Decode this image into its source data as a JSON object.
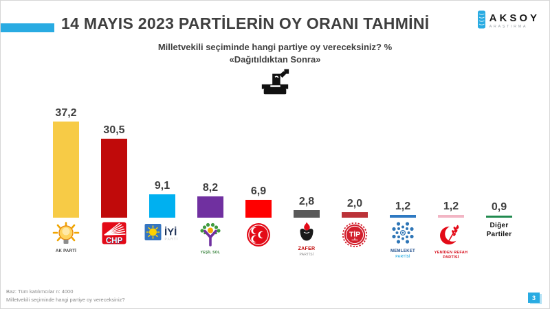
{
  "slide": {
    "title": "14 MAYIS 2023 PARTİLERİN OY ORANI TAHMİNİ",
    "subtitle_line1": "Milletvekili seçiminde hangi partiye oy vereceksiniz? %",
    "subtitle_line2": "«Dağıtıldıktan Sonra»",
    "accent_color": "#29ABE2",
    "page_number": "3"
  },
  "brand": {
    "name": "AKSOY",
    "tagline": "ARAŞTIRMA"
  },
  "footer": {
    "line1": "Baz: Tüm katılımcılar   n: 4000",
    "line2": "Milletvekili seçiminde hangi partiye oy vereceksiniz?"
  },
  "chart_data": {
    "type": "bar",
    "title": "14 MAYIS 2023 PARTİLERİN OY ORANI TAHMİNİ",
    "subtitle": "Milletvekili seçiminde hangi partiye oy vereceksiniz? % «Dağıtıldıktan Sonra»",
    "ylim": [
      0,
      40
    ],
    "grid": false,
    "legend": "none",
    "value_suffix": "%",
    "categories": [
      "AK PARTİ",
      "CHP",
      "İYİ PARTİ",
      "YEŞİL SOL PARTİ",
      "MHP",
      "ZAFER PARTİSİ",
      "TİP",
      "MEMLEKET PARTİSİ",
      "YENİDEN REFAH PARTİSİ",
      "Diğer Partiler"
    ],
    "values": [
      37.2,
      30.5,
      9.1,
      8.2,
      6.9,
      2.8,
      2.0,
      1.2,
      1.2,
      0.9
    ],
    "parties": [
      {
        "name": "AK Parti",
        "value": 37.2,
        "value_label": "37,2",
        "bar_color": "#F7CB46",
        "icon": "akp-lightbulb-icon",
        "logo_text": "",
        "caption_lines": [
          {
            "text": "AK PARTİ",
            "color": "#3B3B3B",
            "size": 6,
            "bold": true
          }
        ]
      },
      {
        "name": "CHP",
        "value": 30.5,
        "value_label": "30,5",
        "bar_color": "#C00A0A",
        "icon": "chp-six-arrows-icon",
        "logo_text": "CHP",
        "caption_lines": []
      },
      {
        "name": "İYİ Parti",
        "value": 9.1,
        "value_label": "9,1",
        "bar_color": "#00B0F0",
        "icon": "iyi-sun-icon",
        "logo_text": "İYİ",
        "logo_subtext": "PARTİ",
        "caption_lines": []
      },
      {
        "name": "Yeşil Sol Parti",
        "value": 8.2,
        "value_label": "8,2",
        "bar_color": "#7030A0",
        "icon": "ysp-figure-icon",
        "logo_text": "",
        "caption_lines": [
          {
            "text": "YEŞİL SOL",
            "color": "#2E7D32",
            "size": 5,
            "bold": true
          }
        ]
      },
      {
        "name": "MHP",
        "value": 6.9,
        "value_label": "6,9",
        "bar_color": "#FF0000",
        "icon": "mhp-crescents-icon",
        "logo_text": "",
        "caption_lines": []
      },
      {
        "name": "Zafer Partisi",
        "value": 2.8,
        "value_label": "2,8",
        "bar_color": "#595959",
        "icon": "zafer-wolf-icon",
        "logo_text": "",
        "caption_lines": [
          {
            "text": "ZAFER",
            "color": "#C00000",
            "size": 7,
            "bold": true
          },
          {
            "text": "PARTİSİ",
            "color": "#8A8A8A",
            "size": 5,
            "bold": false
          }
        ]
      },
      {
        "name": "TİP",
        "value": 2.0,
        "value_label": "2,0",
        "bar_color": "#BB3238",
        "icon": "tip-gear-icon",
        "logo_text": "TİP",
        "caption_lines": []
      },
      {
        "name": "Memleket Partisi",
        "value": 1.2,
        "value_label": "1,2",
        "bar_color": "#2E79C2",
        "icon": "memleket-pattern-icon",
        "logo_text": "",
        "caption_lines": [
          {
            "text": "MEMLEKET",
            "color": "#1F4E8C",
            "size": 6,
            "bold": true
          },
          {
            "text": "PARTİSİ",
            "color": "#41B6E6",
            "size": 5,
            "bold": true
          }
        ]
      },
      {
        "name": "Yeniden Refah Partisi",
        "value": 1.2,
        "value_label": "1,2",
        "bar_color": "#F2B5C4",
        "icon": "yrp-crescent-wheat-icon",
        "logo_text": "",
        "caption_lines": [
          {
            "text": "YENİDEN REFAH",
            "color": "#D50A18",
            "size": 5.5,
            "bold": true
          },
          {
            "text": "PARTİSİ",
            "color": "#D50A18",
            "size": 5.5,
            "bold": true
          }
        ]
      },
      {
        "name": "Diğer Partiler",
        "value": 0.9,
        "value_label": "0,9",
        "bar_color": "#218A4F",
        "icon": "",
        "logo_text": "",
        "caption_lines": [
          {
            "text": "Diğer",
            "color": "#111111",
            "size": 10,
            "bold": true
          },
          {
            "text": "Partiler",
            "color": "#111111",
            "size": 10,
            "bold": true
          }
        ]
      }
    ]
  }
}
